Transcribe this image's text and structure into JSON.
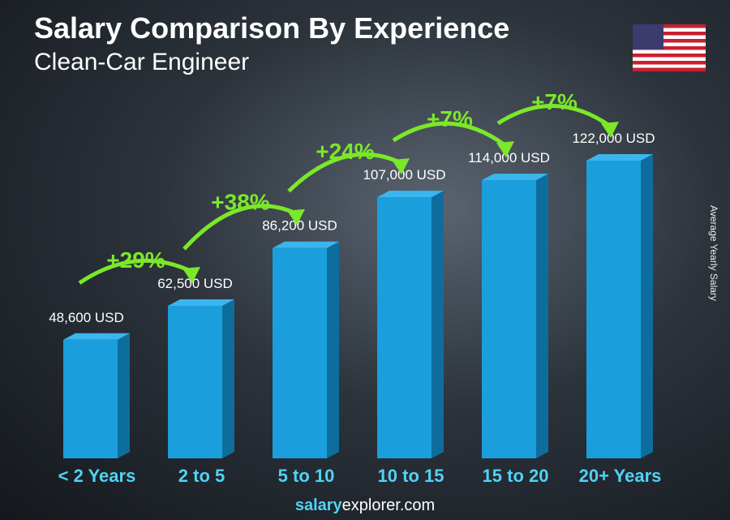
{
  "title": "Salary Comparison By Experience",
  "subtitle": "Clean-Car Engineer",
  "ylabel": "Average Yearly Salary",
  "footer": {
    "brand": "salary",
    "rest": "explorer.com"
  },
  "flag": "united-states",
  "colors": {
    "bar": "#1a9fdc",
    "bar_side": "#0d6e9e",
    "bar_top": "#3bb5ee",
    "pct": "#7be829",
    "label": "#4fd3f5"
  },
  "chart_data": {
    "type": "bar",
    "categories": [
      "< 2 Years",
      "2 to 5",
      "5 to 10",
      "10 to 15",
      "15 to 20",
      "20+ Years"
    ],
    "values": [
      48600,
      62500,
      86200,
      107000,
      114000,
      122000
    ],
    "value_labels": [
      "48,600 USD",
      "62,500 USD",
      "86,200 USD",
      "107,000 USD",
      "114,000 USD",
      "122,000 USD"
    ],
    "changes": [
      "+29%",
      "+38%",
      "+24%",
      "+7%",
      "+7%"
    ],
    "ylabel": "Average Yearly Salary"
  }
}
